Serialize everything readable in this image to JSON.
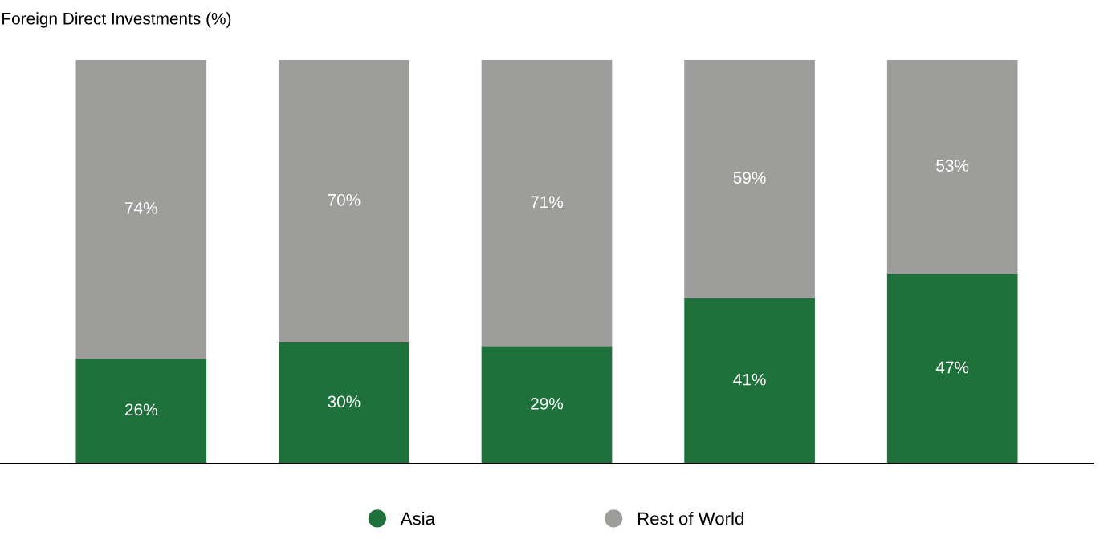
{
  "chart_data": {
    "type": "bar",
    "title": "Foreign Direct Investments (%)",
    "categories": [
      null,
      null,
      null,
      null,
      null
    ],
    "stacked": true,
    "legend": "bottom",
    "grid": false,
    "series": [
      {
        "name": "Asia",
        "color": "#1f713b",
        "values": [
          26,
          30,
          29,
          41,
          47
        ],
        "value_labels": [
          "26%",
          "30%",
          "29%",
          "41%",
          "47%"
        ]
      },
      {
        "name": "Rest of World",
        "color": "#9d9d9b",
        "values": [
          74,
          70,
          71,
          59,
          53
        ],
        "value_labels": [
          "74%",
          "70%",
          "71%",
          "59%",
          "53%"
        ]
      }
    ]
  }
}
